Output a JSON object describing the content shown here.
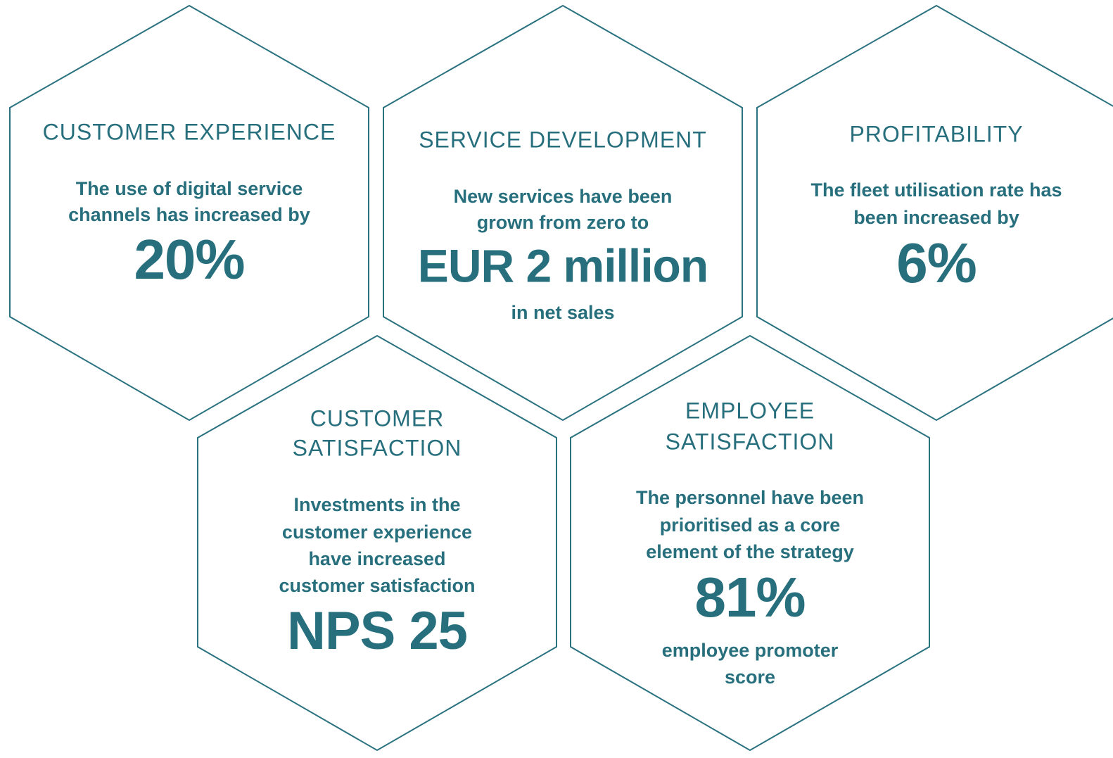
{
  "hexagons": [
    {
      "title_lines": [
        "CUSTOMER EXPERIENCE"
      ],
      "description_lines": [
        "The use of digital service",
        "channels has increased by"
      ],
      "highlight": "20%",
      "note_lines": []
    },
    {
      "title_lines": [
        "SERVICE DEVELOPMENT"
      ],
      "description_lines": [
        "New services have been",
        "grown from zero to"
      ],
      "highlight": "EUR 2 million",
      "note_lines": [
        "in net sales"
      ]
    },
    {
      "title_lines": [
        "PROFITABILITY"
      ],
      "description_lines": [
        "The fleet utilisation rate has",
        "been increased by"
      ],
      "highlight": "6%",
      "note_lines": []
    },
    {
      "title_lines": [
        "CUSTOMER",
        "SATISFACTION"
      ],
      "description_lines": [
        "Investments in the",
        "customer experience",
        "have increased",
        "customer satisfaction"
      ],
      "highlight": "NPS 25",
      "note_lines": []
    },
    {
      "title_lines": [
        "EMPLOYEE",
        "SATISFACTION"
      ],
      "description_lines": [
        "The personnel have been",
        "prioritised as a core",
        "element of the strategy"
      ],
      "highlight": "81%",
      "note_lines": [
        "employee promoter",
        "score"
      ]
    }
  ]
}
